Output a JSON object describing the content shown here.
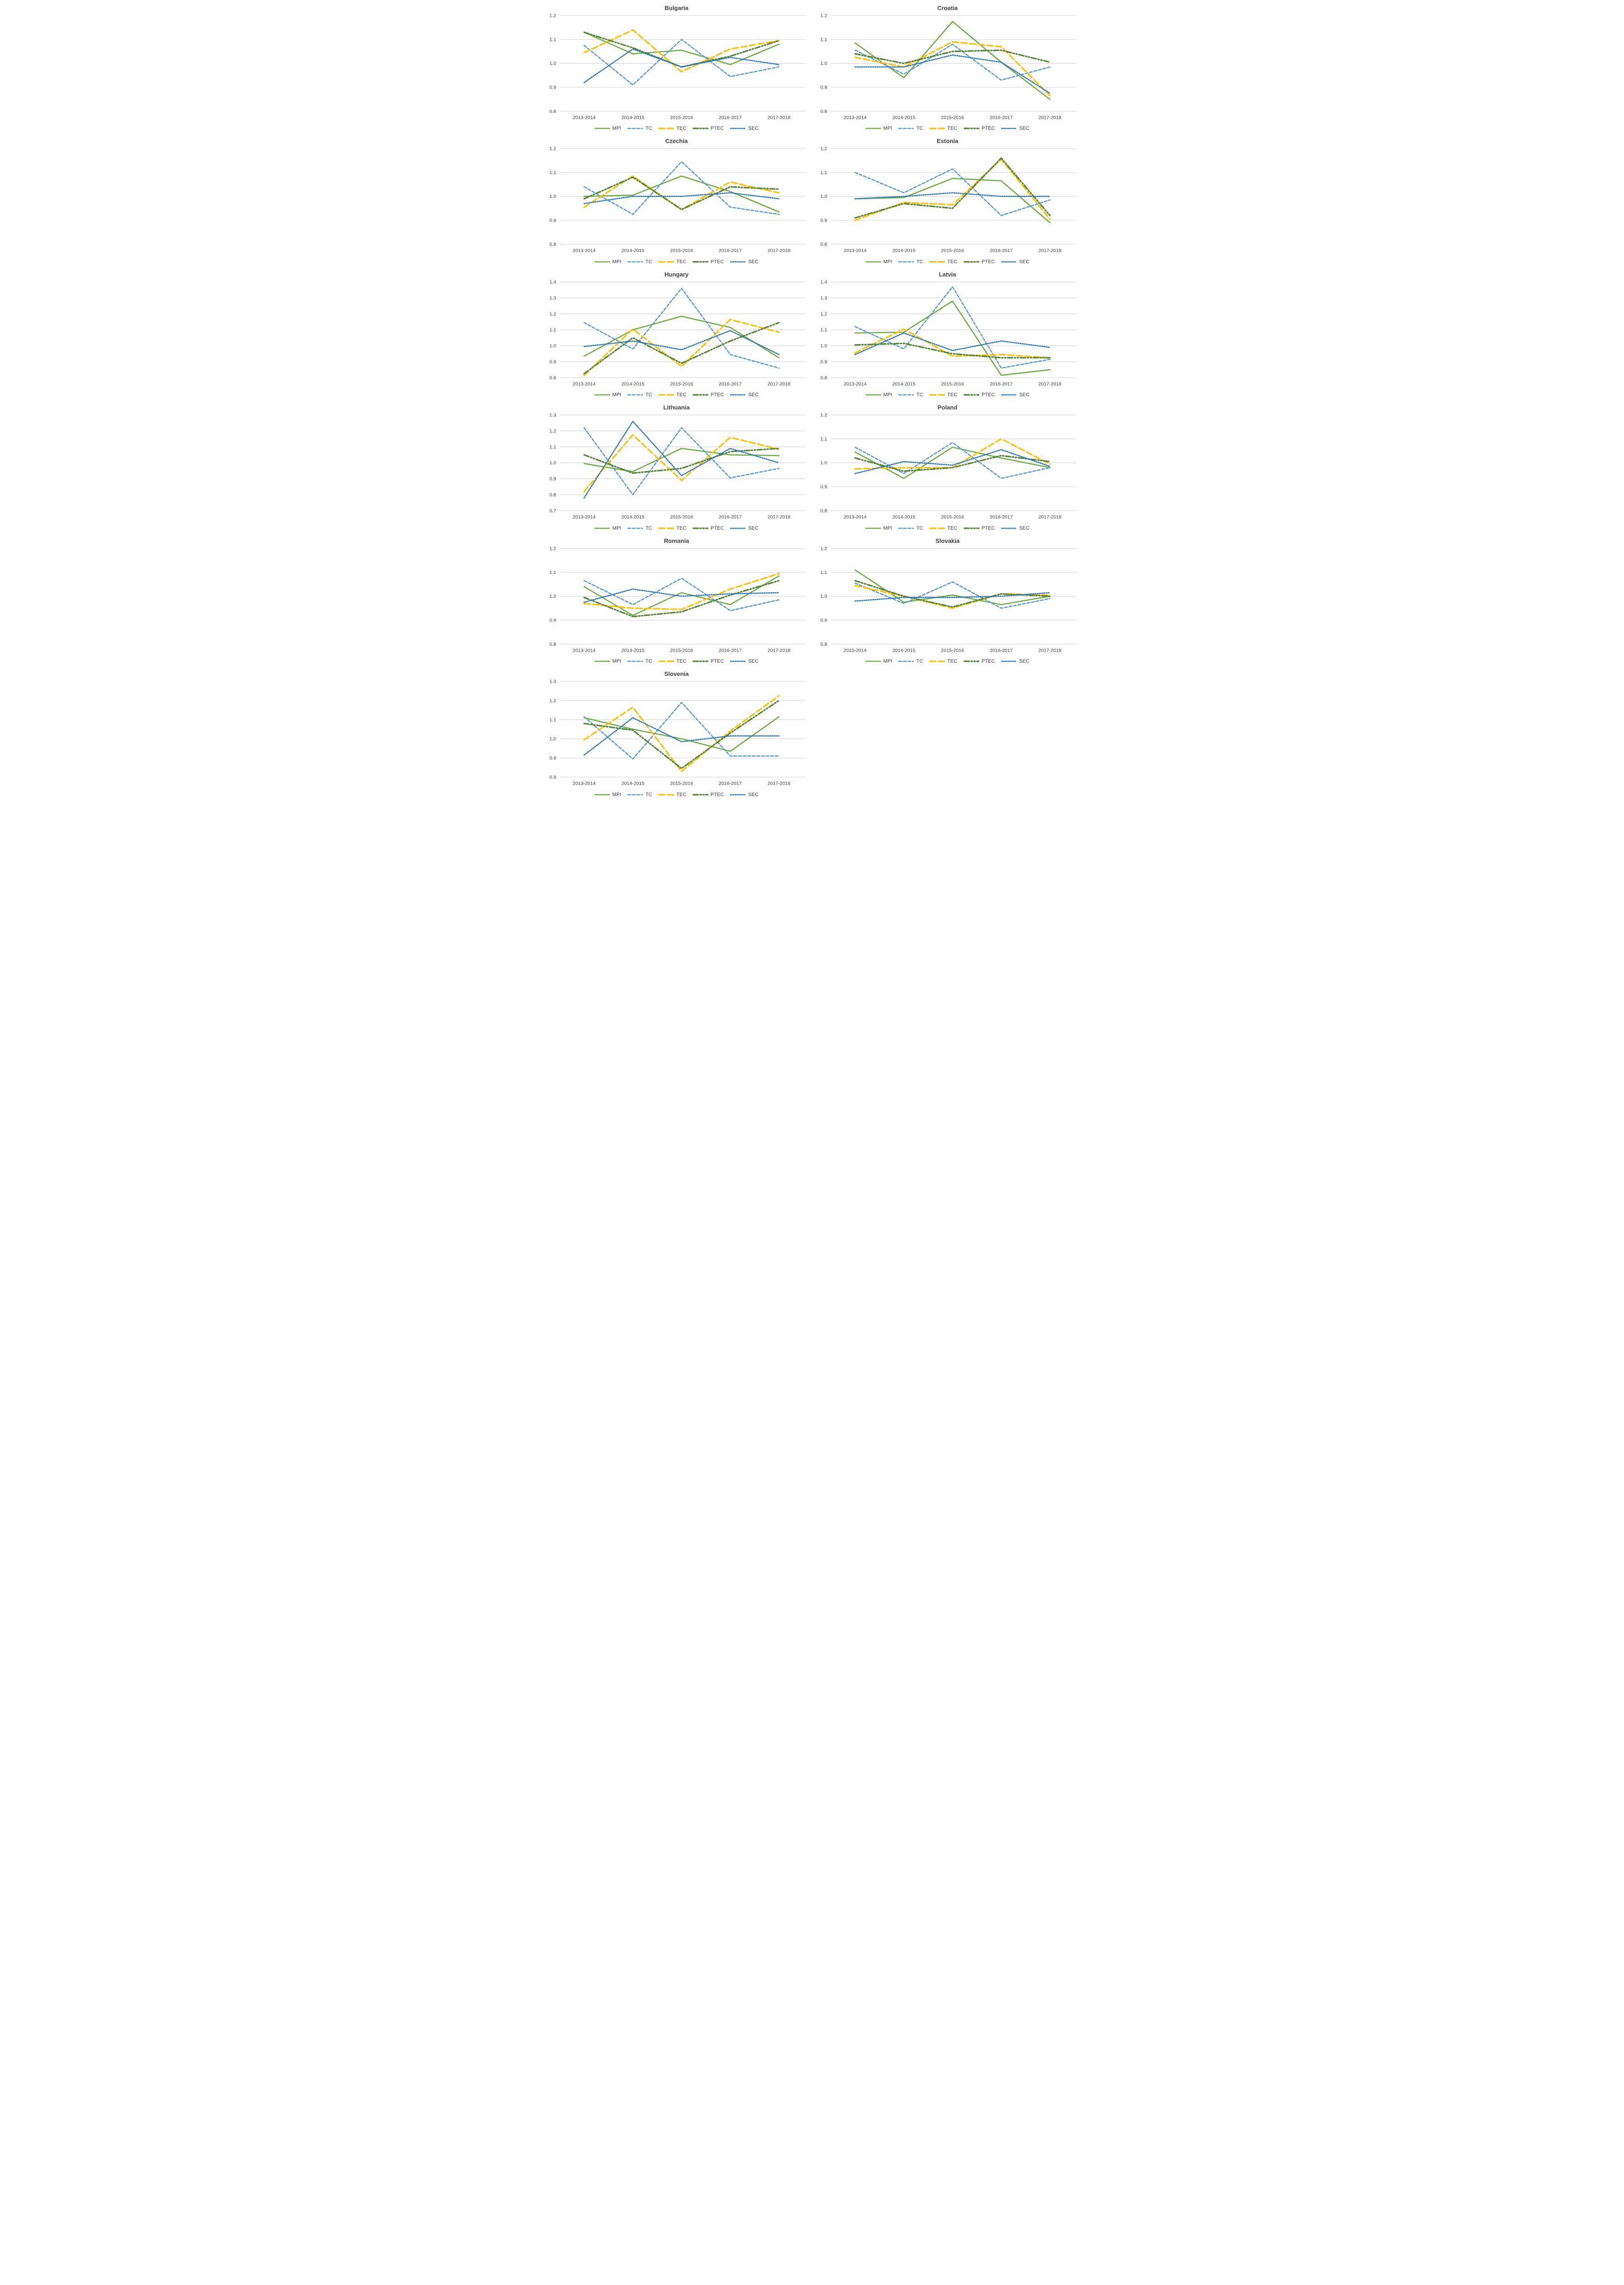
{
  "figure": {
    "grid_color": "#d9d9d9",
    "text_color": "#404040",
    "x_categories": [
      "2013-2014",
      "2014-2015",
      "2015-2016",
      "2016-2017",
      "2017-2018"
    ],
    "series_meta": [
      {
        "id": "MPI",
        "label": "MPI",
        "color": "#70AD47",
        "dash": "solid",
        "width": 2.6
      },
      {
        "id": "TC",
        "label": "TC",
        "color": "#5B9BD5",
        "dash": "dash",
        "width": 2.6
      },
      {
        "id": "TEC",
        "label": "TEC",
        "color": "#FFC000",
        "dash": "longdash",
        "width": 3.2
      },
      {
        "id": "PTEC",
        "label": "PTEC",
        "color": "#548235",
        "dash": "dashdotdot",
        "width": 3.2
      },
      {
        "id": "SEC",
        "label": "SEC",
        "color": "#2E75B6",
        "dash": "dot",
        "width": 2.6
      }
    ]
  },
  "chart_data": [
    {
      "type": "line",
      "title": "Bulgaria",
      "ylim": [
        0.8,
        1.2
      ],
      "yticks": [
        0.8,
        0.9,
        1.0,
        1.1,
        1.2
      ],
      "categories": [
        "2013-2014",
        "2014-2015",
        "2015-2016",
        "2016-2017",
        "2017-2018"
      ],
      "series": [
        {
          "name": "MPI",
          "values": [
            1.13,
            1.04,
            1.055,
            0.995,
            1.08
          ]
        },
        {
          "name": "TC",
          "values": [
            1.075,
            0.91,
            1.1,
            0.945,
            0.985
          ]
        },
        {
          "name": "TEC",
          "values": [
            1.045,
            1.14,
            0.965,
            1.06,
            1.095
          ]
        },
        {
          "name": "PTEC",
          "values": [
            1.13,
            1.065,
            0.985,
            1.03,
            1.095
          ]
        },
        {
          "name": "SEC",
          "values": [
            0.92,
            1.06,
            0.985,
            1.025,
            0.995
          ]
        }
      ]
    },
    {
      "type": "line",
      "title": "Croatia",
      "ylim": [
        0.8,
        1.2
      ],
      "yticks": [
        0.8,
        0.9,
        1.0,
        1.1,
        1.2
      ],
      "categories": [
        "2013-2014",
        "2014-2015",
        "2015-2016",
        "2016-2017",
        "2017-2018"
      ],
      "series": [
        {
          "name": "MPI",
          "values": [
            1.085,
            0.94,
            1.175,
            1.005,
            0.85
          ]
        },
        {
          "name": "TC",
          "values": [
            1.055,
            0.955,
            1.08,
            0.93,
            0.985
          ]
        },
        {
          "name": "TEC",
          "values": [
            1.025,
            0.985,
            1.09,
            1.07,
            0.865
          ]
        },
        {
          "name": "PTEC",
          "values": [
            1.04,
            1.0,
            1.05,
            1.055,
            1.005
          ]
        },
        {
          "name": "SEC",
          "values": [
            0.985,
            0.985,
            1.035,
            1.005,
            0.875
          ]
        }
      ]
    },
    {
      "type": "line",
      "title": "Czechia",
      "ylim": [
        0.8,
        1.2
      ],
      "yticks": [
        0.8,
        0.9,
        1.0,
        1.1,
        1.2
      ],
      "categories": [
        "2013-2014",
        "2014-2015",
        "2015-2016",
        "2016-2017",
        "2017-2018"
      ],
      "series": [
        {
          "name": "MPI",
          "values": [
            1.0,
            1.005,
            1.085,
            1.02,
            0.935
          ]
        },
        {
          "name": "TC",
          "values": [
            1.04,
            0.925,
            1.145,
            0.955,
            0.925
          ]
        },
        {
          "name": "TEC",
          "values": [
            0.955,
            1.085,
            0.945,
            1.06,
            1.015
          ]
        },
        {
          "name": "PTEC",
          "values": [
            0.99,
            1.08,
            0.945,
            1.04,
            1.03
          ]
        },
        {
          "name": "SEC",
          "values": [
            0.97,
            1.0,
            1.0,
            1.015,
            0.99
          ]
        }
      ]
    },
    {
      "type": "line",
      "title": "Estonia",
      "ylim": [
        0.8,
        1.2
      ],
      "yticks": [
        0.8,
        0.9,
        1.0,
        1.1,
        1.2
      ],
      "categories": [
        "2013-2014",
        "2014-2015",
        "2015-2016",
        "2016-2017",
        "2017-2018"
      ],
      "series": [
        {
          "name": "MPI",
          "values": [
            0.99,
            0.995,
            1.075,
            1.065,
            0.89
          ]
        },
        {
          "name": "TC",
          "values": [
            1.1,
            1.015,
            1.115,
            0.92,
            0.985
          ]
        },
        {
          "name": "TEC",
          "values": [
            0.9,
            0.975,
            0.965,
            1.155,
            0.905
          ]
        },
        {
          "name": "PTEC",
          "values": [
            0.91,
            0.97,
            0.95,
            1.16,
            0.92
          ]
        },
        {
          "name": "SEC",
          "values": [
            0.99,
            1.0,
            1.015,
            1.0,
            1.0
          ]
        }
      ]
    },
    {
      "type": "line",
      "title": "Hungary",
      "ylim": [
        0.8,
        1.4
      ],
      "yticks": [
        0.8,
        0.9,
        1.0,
        1.1,
        1.2,
        1.3,
        1.4
      ],
      "categories": [
        "2013-2014",
        "2014-2015",
        "2015-2016",
        "2016-2017",
        "2017-2018"
      ],
      "series": [
        {
          "name": "MPI",
          "values": [
            0.935,
            1.1,
            1.185,
            1.115,
            0.925
          ]
        },
        {
          "name": "TC",
          "values": [
            1.145,
            0.98,
            1.36,
            0.945,
            0.86
          ]
        },
        {
          "name": "TEC",
          "values": [
            0.815,
            1.105,
            0.87,
            1.165,
            1.085
          ]
        },
        {
          "name": "PTEC",
          "values": [
            0.825,
            1.05,
            0.89,
            1.03,
            1.145
          ]
        },
        {
          "name": "SEC",
          "values": [
            0.995,
            1.03,
            0.975,
            1.095,
            0.945
          ]
        }
      ]
    },
    {
      "type": "line",
      "title": "Latvia",
      "ylim": [
        0.8,
        1.4
      ],
      "yticks": [
        0.8,
        0.9,
        1.0,
        1.1,
        1.2,
        1.3,
        1.4
      ],
      "categories": [
        "2013-2014",
        "2014-2015",
        "2015-2016",
        "2016-2017",
        "2017-2018"
      ],
      "series": [
        {
          "name": "MPI",
          "values": [
            1.08,
            1.085,
            1.28,
            0.815,
            0.85
          ]
        },
        {
          "name": "TC",
          "values": [
            1.12,
            0.98,
            1.37,
            0.86,
            0.915
          ]
        },
        {
          "name": "TEC",
          "values": [
            0.955,
            1.105,
            0.935,
            0.945,
            0.925
          ]
        },
        {
          "name": "PTEC",
          "values": [
            1.005,
            1.015,
            0.95,
            0.925,
            0.925
          ]
        },
        {
          "name": "SEC",
          "values": [
            0.945,
            1.08,
            0.97,
            1.03,
            0.99
          ]
        }
      ]
    },
    {
      "type": "line",
      "title": "Lithuania",
      "ylim": [
        0.7,
        1.3
      ],
      "yticks": [
        0.7,
        0.8,
        0.9,
        1.0,
        1.1,
        1.2,
        1.3
      ],
      "categories": [
        "2013-2014",
        "2014-2015",
        "2015-2016",
        "2016-2017",
        "2017-2018"
      ],
      "series": [
        {
          "name": "MPI",
          "values": [
            0.995,
            0.945,
            1.09,
            1.05,
            1.045
          ]
        },
        {
          "name": "TC",
          "values": [
            1.22,
            0.8,
            1.22,
            0.905,
            0.965
          ]
        },
        {
          "name": "TEC",
          "values": [
            0.82,
            1.175,
            0.89,
            1.16,
            1.085
          ]
        },
        {
          "name": "PTEC",
          "values": [
            1.05,
            0.935,
            0.965,
            1.07,
            1.09
          ]
        },
        {
          "name": "SEC",
          "values": [
            0.78,
            1.26,
            0.92,
            1.09,
            1.0
          ]
        }
      ]
    },
    {
      "type": "line",
      "title": "Poland",
      "ylim": [
        0.8,
        1.2
      ],
      "yticks": [
        0.8,
        0.9,
        1.0,
        1.1,
        1.2
      ],
      "categories": [
        "2013-2014",
        "2014-2015",
        "2015-2016",
        "2016-2017",
        "2017-2018"
      ],
      "series": [
        {
          "name": "MPI",
          "values": [
            1.045,
            0.935,
            1.065,
            1.02,
            0.98
          ]
        },
        {
          "name": "TC",
          "values": [
            1.065,
            0.955,
            1.085,
            0.935,
            0.98
          ]
        },
        {
          "name": "TEC",
          "values": [
            0.975,
            0.98,
            0.98,
            1.1,
            0.995
          ]
        },
        {
          "name": "PTEC",
          "values": [
            1.02,
            0.965,
            0.98,
            1.03,
            1.005
          ]
        },
        {
          "name": "SEC",
          "values": [
            0.955,
            1.005,
            0.99,
            1.055,
            0.985
          ]
        }
      ]
    },
    {
      "type": "line",
      "title": "Romania",
      "ylim": [
        0.8,
        1.2
      ],
      "yticks": [
        0.8,
        0.9,
        1.0,
        1.1,
        1.2
      ],
      "categories": [
        "2013-2014",
        "2014-2015",
        "2015-2016",
        "2016-2017",
        "2017-2018"
      ],
      "series": [
        {
          "name": "MPI",
          "values": [
            1.04,
            0.92,
            1.015,
            0.965,
            1.085
          ]
        },
        {
          "name": "TC",
          "values": [
            1.065,
            0.965,
            1.075,
            0.94,
            0.985
          ]
        },
        {
          "name": "TEC",
          "values": [
            0.97,
            0.95,
            0.945,
            1.03,
            1.095
          ]
        },
        {
          "name": "PTEC",
          "values": [
            0.995,
            0.915,
            0.935,
            1.005,
            1.065
          ]
        },
        {
          "name": "SEC",
          "values": [
            0.975,
            1.03,
            1.0,
            1.01,
            1.015
          ]
        }
      ]
    },
    {
      "type": "line",
      "title": "Slovakia",
      "ylim": [
        0.8,
        1.2
      ],
      "yticks": [
        0.8,
        0.9,
        1.0,
        1.1,
        1.2
      ],
      "categories": [
        "2013-2014",
        "2014-2015",
        "2015-2016",
        "2016-2017",
        "2017-2018"
      ],
      "series": [
        {
          "name": "MPI",
          "values": [
            1.11,
            0.975,
            1.005,
            0.965,
            1.0
          ]
        },
        {
          "name": "TC",
          "values": [
            1.055,
            0.97,
            1.06,
            0.95,
            0.99
          ]
        },
        {
          "name": "TEC",
          "values": [
            1.045,
            1.0,
            0.95,
            1.01,
            1.005
          ]
        },
        {
          "name": "PTEC",
          "values": [
            1.065,
            1.0,
            0.955,
            1.01,
            1.0
          ]
        },
        {
          "name": "SEC",
          "values": [
            0.98,
            0.995,
            0.995,
            1.0,
            1.015
          ]
        }
      ]
    },
    {
      "type": "line",
      "title": "Slovenia",
      "ylim": [
        0.8,
        1.3
      ],
      "yticks": [
        0.8,
        0.9,
        1.0,
        1.1,
        1.2,
        1.3
      ],
      "categories": [
        "2013-2014",
        "2014-2015",
        "2015-2016",
        "2016-2017",
        "2017-2018"
      ],
      "series": [
        {
          "name": "MPI",
          "values": [
            1.11,
            1.05,
            1.0,
            0.935,
            1.115
          ]
        },
        {
          "name": "TC",
          "values": [
            1.115,
            0.895,
            1.19,
            0.91,
            0.91
          ]
        },
        {
          "name": "TEC",
          "values": [
            0.995,
            1.165,
            0.83,
            1.04,
            1.225
          ]
        },
        {
          "name": "PTEC",
          "values": [
            1.08,
            1.045,
            0.845,
            1.03,
            1.2
          ]
        },
        {
          "name": "SEC",
          "values": [
            0.915,
            1.11,
            0.985,
            1.015,
            1.015
          ]
        }
      ]
    }
  ]
}
